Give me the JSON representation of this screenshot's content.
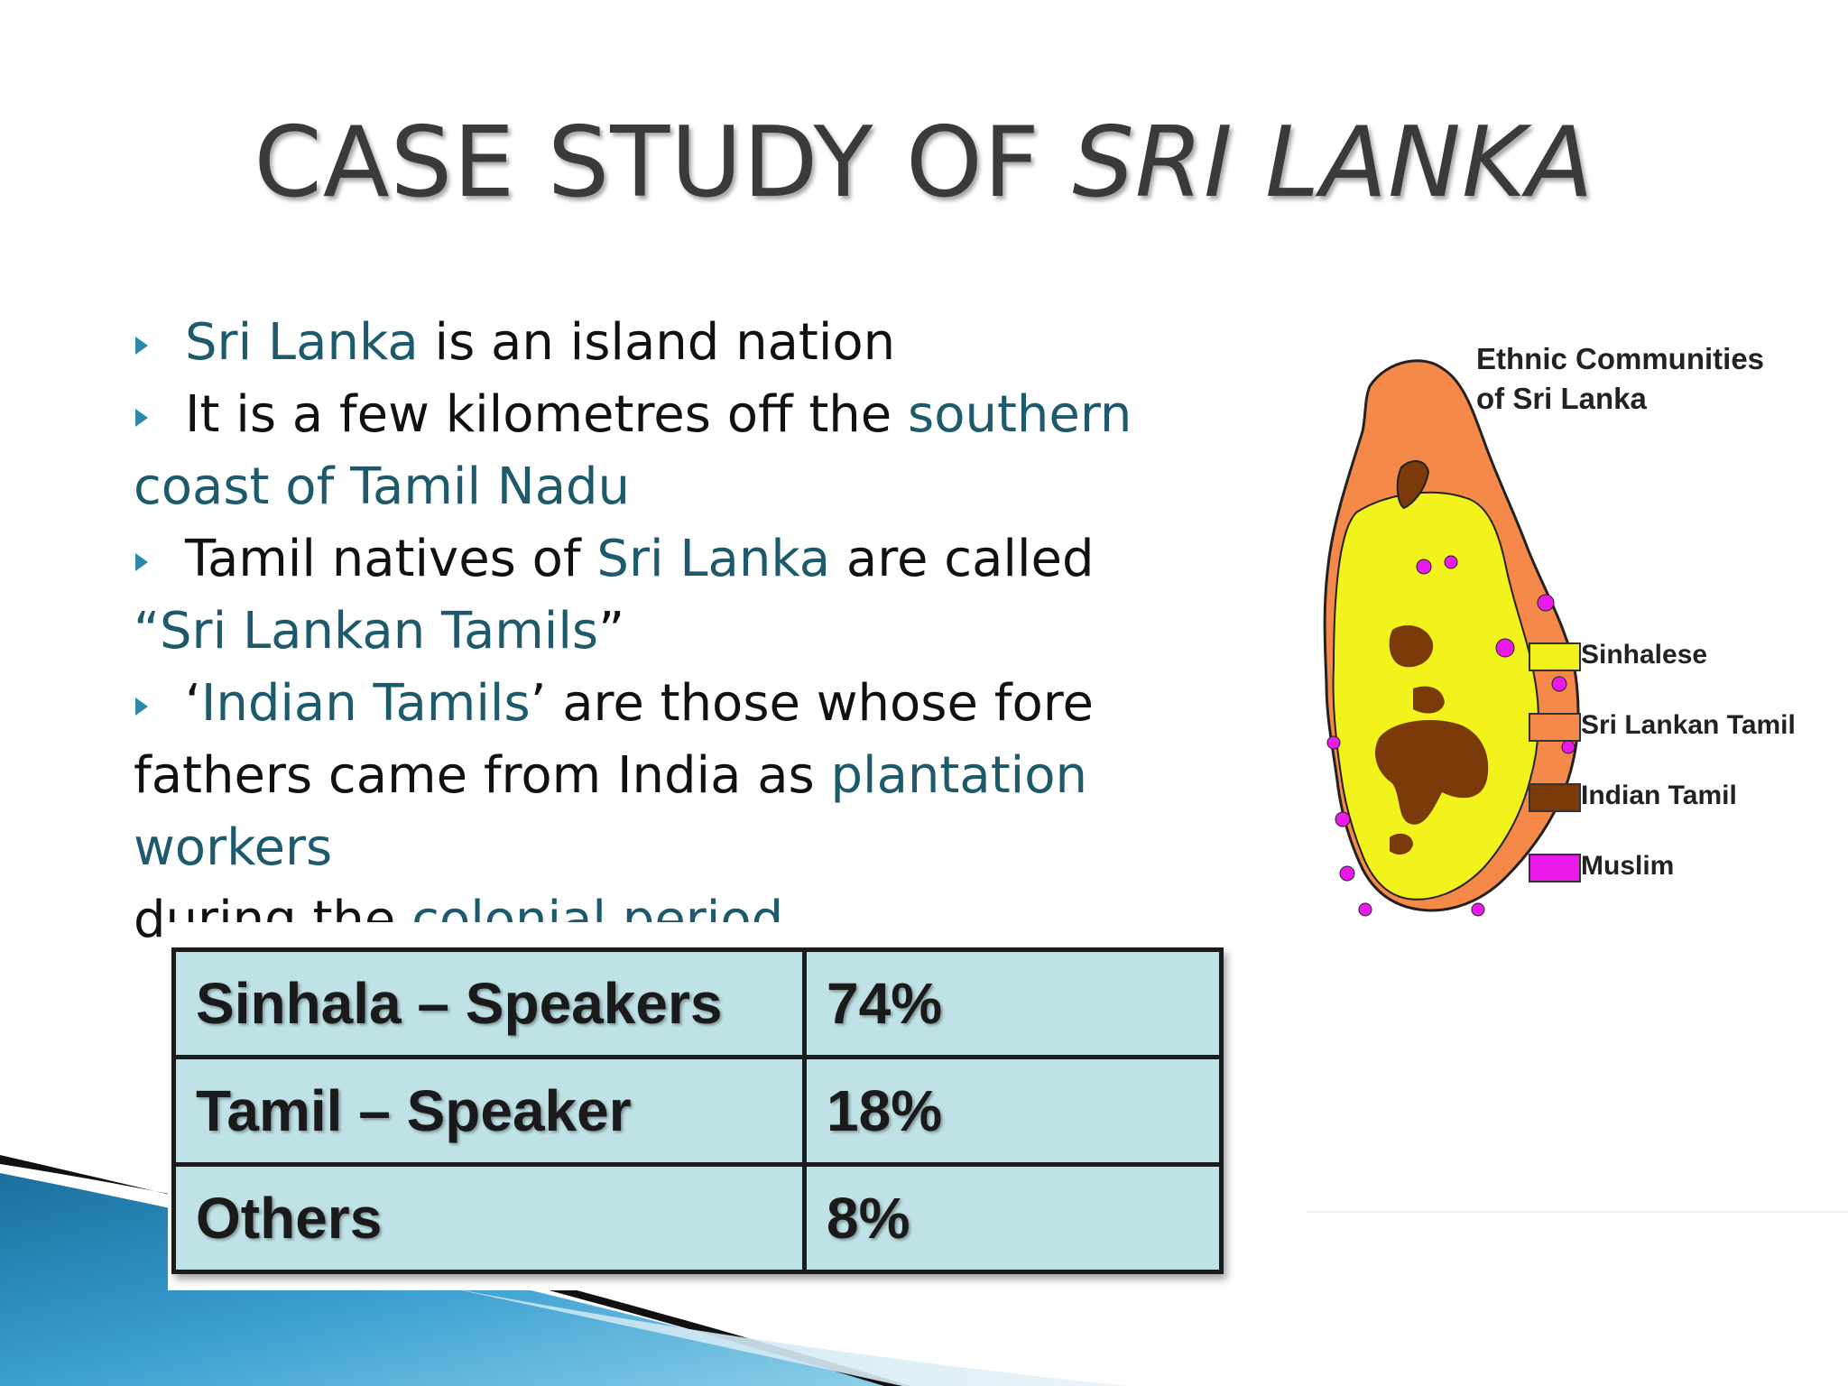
{
  "slide": {
    "title_plain": "CASE STUDY OF",
    "title_italic": "SRI LANKA"
  },
  "bullets": [
    {
      "parts": [
        {
          "text": "Sri Lanka",
          "highlight": true
        },
        {
          "text": " is an island nation",
          "highlight": false
        }
      ]
    },
    {
      "parts": [
        {
          "text": "It is a few kilometres off the ",
          "highlight": false
        },
        {
          "text": "southern coast  of Tamil Nadu",
          "highlight": true
        }
      ]
    },
    {
      "parts": [
        {
          "text": "Tamil natives of ",
          "highlight": false
        },
        {
          "text": "Sri Lanka",
          "highlight": true
        },
        {
          "text": " are called",
          "highlight": false
        },
        {
          "text": "“Sri Lankan Tamils",
          "highlight": true
        },
        {
          "text": "”",
          "highlight": false
        }
      ]
    },
    {
      "parts": [
        {
          "text": "‘",
          "highlight": false
        },
        {
          "text": "Indian Tamils",
          "highlight": true
        },
        {
          "text": "’ are those whose fore fathers came from India as ",
          "highlight": false
        },
        {
          "text": "plantation workers",
          "highlight": true
        },
        {
          "text": " during the ",
          "highlight": false
        },
        {
          "text": "colonial period",
          "highlight": true
        }
      ]
    }
  ],
  "lines": [
    [
      {
        "t": "Sri Lanka",
        "h": true
      },
      {
        "t": " is an island nation",
        "h": false
      }
    ],
    [
      {
        "t": "It is a few kilometres off the ",
        "h": false
      },
      {
        "t": "southern",
        "h": true
      }
    ],
    [
      {
        "t": "coast  of Tamil Nadu",
        "h": true
      }
    ],
    [
      {
        "t": "Tamil natives of ",
        "h": false
      },
      {
        "t": "Sri Lanka",
        "h": true
      },
      {
        "t": " are called",
        "h": false
      }
    ],
    [
      {
        "t": "“Sri Lankan Tamils",
        "h": true
      },
      {
        "t": "”",
        "h": false
      }
    ],
    [
      {
        "t": "‘",
        "h": false
      },
      {
        "t": "Indian Tamils",
        "h": true
      },
      {
        "t": "’ are those whose fore",
        "h": false
      }
    ],
    [
      {
        "t": "fathers came from India as ",
        "h": false
      },
      {
        "t": "plantation workers",
        "h": true
      }
    ],
    [
      {
        "t": "during the ",
        "h": false
      },
      {
        "t": "colonial period",
        "h": true
      }
    ]
  ],
  "bullet_lines": [
    true,
    true,
    false,
    true,
    false,
    true,
    false,
    false
  ],
  "language_table": {
    "rows": [
      {
        "group": "Sinhala – Speakers",
        "share": "74%"
      },
      {
        "group": "Tamil – Speaker",
        "share": "18%"
      },
      {
        "group": "Others",
        "share": "8%"
      }
    ]
  },
  "map": {
    "title_line1": "Ethnic Communities",
    "title_line2": "of Sri Lanka",
    "legend": [
      {
        "label": "Sinhalese",
        "color": "#f2f21c"
      },
      {
        "label": "Sri Lankan Tamil",
        "color": "#f5894a"
      },
      {
        "label": "Indian Tamil",
        "color": "#7a3a0a"
      },
      {
        "label": "Muslim",
        "color": "#ea1bea"
      }
    ]
  },
  "colors": {
    "highlight_text": "#1d5a6c",
    "bullet_arrow": "#2a8aa8",
    "table_fill": "#bfe2e6",
    "deco_blue": "#2f8fbf"
  }
}
